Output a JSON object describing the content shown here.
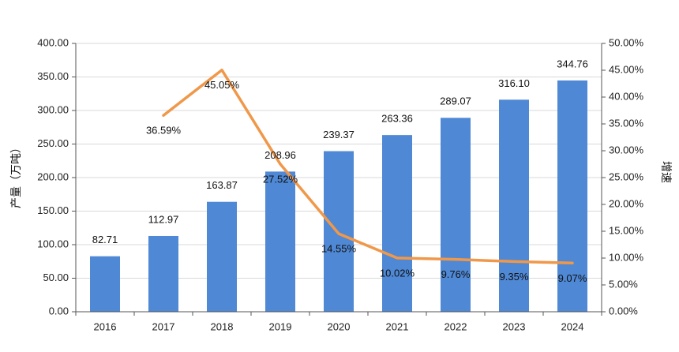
{
  "chart_data": {
    "type": "bar",
    "categories": [
      "2016",
      "2017",
      "2018",
      "2019",
      "2020",
      "2021",
      "2022",
      "2023",
      "2024"
    ],
    "series": [
      {
        "type": "bar",
        "axis": "left",
        "values": [
          82.71,
          112.97,
          163.87,
          208.96,
          239.37,
          263.36,
          289.07,
          316.1,
          344.76
        ],
        "labels": [
          "82.71",
          "112.97",
          "163.87",
          "208.96",
          "239.37",
          "263.36",
          "289.07",
          "316.10",
          "344.76"
        ],
        "color": "#4f88d4"
      },
      {
        "type": "line",
        "axis": "right",
        "values": [
          null,
          36.59,
          45.05,
          27.52,
          14.55,
          10.02,
          9.76,
          9.35,
          9.07
        ],
        "labels": [
          "",
          "36.59%",
          "45.05%",
          "27.52%",
          "14.55%",
          "10.02%",
          "9.76%",
          "9.35%",
          "9.07%"
        ],
        "color": "#f0984a"
      }
    ],
    "ylabel": "产量（万吨）",
    "y2label": "增速",
    "ylim": [
      0,
      400
    ],
    "y2lim": [
      0,
      50
    ],
    "yticks": [
      "0.00",
      "50.00",
      "100.00",
      "150.00",
      "200.00",
      "250.00",
      "300.00",
      "350.00",
      "400.00"
    ],
    "y2ticks": [
      "0.00%",
      "5.00%",
      "10.00%",
      "15.00%",
      "20.00%",
      "25.00%",
      "30.00%",
      "35.00%",
      "40.00%",
      "45.00%",
      "50.00%"
    ],
    "grid": true,
    "legend": "none"
  }
}
